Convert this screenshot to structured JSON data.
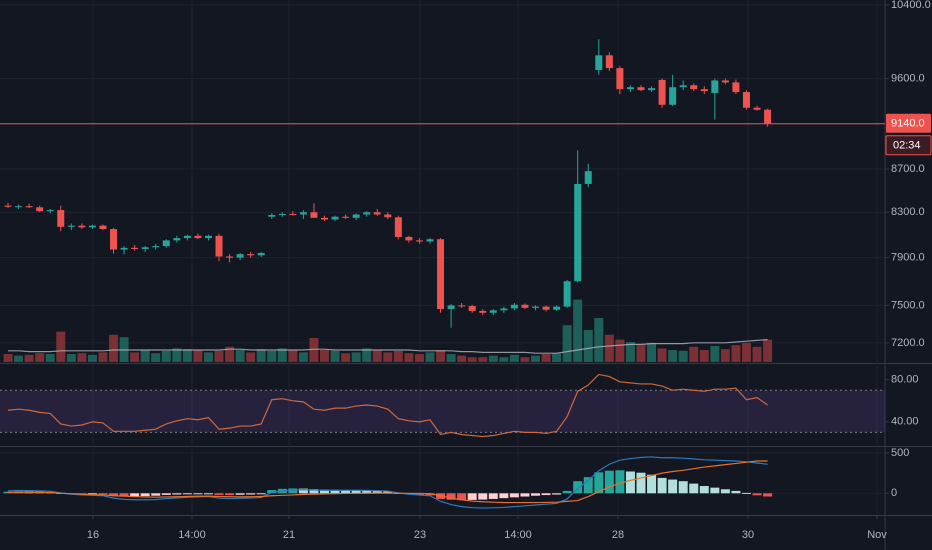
{
  "chart_data": [
    {
      "type": "candlestick",
      "open": [
        8360,
        8350,
        8355,
        8345,
        8310,
        8320,
        8170,
        8180,
        8165,
        8180,
        8150,
        7970,
        7985,
        7975,
        7990,
        8000,
        8050,
        8070,
        8090,
        8070,
        8090,
        7910,
        7900,
        7930,
        7920,
        8260,
        8275,
        8285,
        8280,
        8300,
        8250,
        8235,
        8260,
        8250,
        8280,
        8300,
        8280,
        8255,
        8080,
        8050,
        8040,
        8060,
        7470,
        7500,
        7495,
        7455,
        7440,
        7460,
        7475,
        7505,
        7480,
        7490,
        7465,
        7490,
        7700,
        8560,
        9690,
        9846,
        9710,
        9490,
        9510,
        9480,
        9586,
        9330,
        9510,
        9530,
        9490,
        9450,
        9580,
        9560,
        9460,
        9300,
        9280
      ],
      "high": [
        8385,
        8370,
        8380,
        8360,
        8330,
        8360,
        8200,
        8200,
        8190,
        8190,
        8160,
        8000,
        8010,
        8000,
        8020,
        8060,
        8090,
        8100,
        8110,
        8100,
        8110,
        7930,
        7940,
        7950,
        7950,
        8290,
        8300,
        8310,
        8320,
        8380,
        8270,
        8270,
        8280,
        8290,
        8310,
        8330,
        8300,
        8270,
        8090,
        8070,
        8070,
        8070,
        7510,
        7520,
        7505,
        7470,
        7470,
        7490,
        7520,
        7515,
        7500,
        7500,
        7500,
        7710,
        8880,
        8750,
        10020,
        9880,
        9730,
        9530,
        9530,
        9520,
        9600,
        9640,
        9580,
        9550,
        9520,
        9600,
        9600,
        9590,
        9480,
        9320,
        9290
      ],
      "low": [
        8340,
        8330,
        8340,
        8300,
        8290,
        8130,
        8140,
        8150,
        8150,
        8140,
        7935,
        7930,
        7960,
        7950,
        7970,
        7985,
        8030,
        8050,
        8060,
        8050,
        7870,
        7860,
        7880,
        7900,
        7905,
        8240,
        8260,
        8270,
        8240,
        8260,
        8220,
        8220,
        8240,
        8230,
        8260,
        8270,
        8240,
        8060,
        8030,
        8020,
        8020,
        7440,
        7320,
        7480,
        7440,
        7420,
        7420,
        7440,
        7460,
        7470,
        7460,
        7450,
        7455,
        7480,
        7690,
        8530,
        9640,
        9680,
        9440,
        9460,
        9470,
        9460,
        9300,
        9320,
        9480,
        9470,
        9440,
        9180,
        9540,
        9440,
        9280,
        9270,
        9110
      ],
      "close": [
        8350,
        8355,
        8345,
        8310,
        8320,
        8170,
        8180,
        8165,
        8180,
        8150,
        7970,
        7985,
        7975,
        7990,
        8000,
        8050,
        8070,
        8090,
        8070,
        8090,
        7910,
        7900,
        7930,
        7920,
        7940,
        8275,
        8285,
        8280,
        8300,
        8250,
        8235,
        8260,
        8250,
        8280,
        8300,
        8280,
        8255,
        8080,
        8050,
        8040,
        8060,
        7470,
        7500,
        7495,
        7455,
        7440,
        7460,
        7475,
        7505,
        7480,
        7490,
        7465,
        7490,
        7700,
        8560,
        8680,
        9846,
        9710,
        9490,
        9510,
        9480,
        9500,
        9330,
        9510,
        9530,
        9490,
        9470,
        9580,
        9560,
        9460,
        9300,
        9280,
        9140
      ],
      "up_color": "#26a69a",
      "down_color": "#ef5350",
      "ylim": [
        7052,
        10457
      ],
      "log_scale": true,
      "yticks": [
        {
          "value": 10400,
          "label": "10400.0"
        },
        {
          "value": 9600,
          "label": "9600.0"
        },
        {
          "value": 8700,
          "label": "8700.0"
        },
        {
          "value": 8300,
          "label": "8300.0"
        },
        {
          "value": 7900,
          "label": "7900.0"
        },
        {
          "value": 7500,
          "label": "7500.0"
        },
        {
          "value": 7200,
          "label": "7200.0"
        }
      ],
      "volume": [
        10,
        8,
        9,
        11,
        10,
        38,
        10,
        11,
        9,
        12,
        34,
        31,
        12,
        15,
        11,
        14,
        17,
        16,
        15,
        12,
        14,
        19,
        15,
        12,
        16,
        14,
        17,
        15,
        12,
        30,
        15,
        14,
        11,
        12,
        17,
        15,
        12,
        14,
        11,
        10,
        12,
        15,
        10,
        8,
        6,
        6,
        8,
        6,
        9,
        6,
        8,
        10,
        11,
        46,
        78,
        40,
        55,
        34,
        28,
        25,
        22,
        24,
        17,
        15,
        14,
        19,
        15,
        20,
        16,
        21,
        24,
        19,
        28
      ],
      "volume_ma": [
        14,
        14,
        13,
        13,
        13,
        14,
        14,
        14,
        14,
        14,
        15,
        15,
        15,
        15,
        15,
        15,
        15,
        15,
        15,
        15,
        15,
        16,
        16,
        15,
        15,
        15,
        15,
        15,
        15,
        16,
        16,
        15,
        15,
        15,
        15,
        15,
        15,
        15,
        15,
        14,
        14,
        14,
        14,
        13,
        13,
        12,
        12,
        12,
        12,
        12,
        11,
        11,
        11,
        13,
        15,
        17,
        19,
        20,
        21,
        22,
        22,
        23,
        23,
        23,
        23,
        24,
        24,
        24,
        24,
        25,
        26,
        27,
        28
      ],
      "volume_color_up": "#1f5f5a",
      "volume_color_down": "#7a3034",
      "volume_ma_color": "#b2b5be",
      "vlim": [
        0,
        100
      ],
      "xlim": [
        -0.76,
        83.13
      ],
      "xticks": [
        {
          "value": 8.06,
          "label": "16"
        },
        {
          "value": 17.44,
          "label": "14:00"
        },
        {
          "value": 26.64,
          "label": "21"
        },
        {
          "value": 39.05,
          "label": "23"
        },
        {
          "value": 48.34,
          "label": "14:00"
        },
        {
          "value": 57.82,
          "label": "28"
        },
        {
          "value": 70.14,
          "label": "30"
        },
        {
          "value": 82.37,
          "label": "Nov"
        }
      ],
      "last_price": {
        "value": 9140,
        "label": "9140.0"
      },
      "countdown": "02:34",
      "grid": true
    },
    {
      "type": "line",
      "values": [
        51,
        52,
        51,
        49,
        48,
        38,
        36,
        37,
        40,
        39,
        31,
        31,
        31,
        32,
        33,
        38,
        41,
        43,
        42,
        44,
        33,
        34,
        36,
        36,
        38,
        61,
        62,
        60,
        59,
        52,
        51,
        53,
        53,
        55,
        56,
        55,
        52,
        43,
        41,
        40,
        42,
        28,
        30,
        28,
        27,
        26,
        27,
        29,
        31,
        30,
        30,
        29,
        31,
        45,
        69,
        75,
        85,
        83,
        78,
        77,
        76,
        76,
        74,
        70,
        71,
        70,
        69,
        71,
        71,
        72,
        61,
        63,
        56
      ],
      "color": "#d0683a",
      "ylim": [
        18,
        94
      ],
      "yticks": [
        {
          "value": 80,
          "label": "80.00"
        },
        {
          "value": 40,
          "label": "40.00"
        }
      ],
      "band": [
        30,
        70
      ],
      "band_color": "#7e57c2"
    },
    {
      "type": "macd",
      "macd": [
        30,
        35,
        33,
        30,
        25,
        5,
        -10,
        -20,
        -25,
        -30,
        -60,
        -75,
        -80,
        -80,
        -78,
        -65,
        -58,
        -50,
        -45,
        -40,
        -60,
        -65,
        -62,
        -58,
        -52,
        10,
        30,
        40,
        45,
        40,
        38,
        38,
        38,
        38,
        36,
        32,
        28,
        5,
        -10,
        -22,
        -30,
        -100,
        -140,
        -165,
        -178,
        -183,
        -180,
        -175,
        -165,
        -155,
        -145,
        -135,
        -125,
        -70,
        60,
        160,
        280,
        360,
        410,
        430,
        445,
        450,
        440,
        440,
        435,
        425,
        415,
        410,
        405,
        400,
        390,
        375,
        360
      ],
      "signal": [
        10,
        10,
        11,
        10,
        10,
        0,
        -5,
        -10,
        -17,
        -18,
        -30,
        -35,
        -42,
        -45,
        -48,
        -45,
        -43,
        -40,
        -37,
        -35,
        -40,
        -43,
        -44,
        -43,
        -40,
        -30,
        -25,
        -20,
        -13,
        -10,
        -7,
        -4,
        -2,
        0,
        1,
        2,
        3,
        0,
        0,
        -2,
        -5,
        -30,
        -60,
        -80,
        -96,
        -105,
        -110,
        -115,
        -115,
        -115,
        -115,
        -113,
        -110,
        -100,
        -90,
        -40,
        20,
        80,
        125,
        160,
        190,
        220,
        250,
        270,
        285,
        305,
        325,
        340,
        355,
        370,
        385,
        400,
        400
      ],
      "histogram": [
        20,
        25,
        22,
        20,
        15,
        5,
        -5,
        -10,
        -8,
        -12,
        -30,
        -40,
        -38,
        -35,
        -30,
        -20,
        -15,
        -10,
        -8,
        -5,
        -20,
        -22,
        -18,
        -15,
        -12,
        40,
        55,
        60,
        58,
        50,
        45,
        42,
        40,
        38,
        35,
        30,
        25,
        5,
        -10,
        -20,
        -25,
        -70,
        -80,
        -85,
        -82,
        -78,
        -70,
        -60,
        -50,
        -40,
        -30,
        -22,
        -15,
        30,
        150,
        200,
        260,
        280,
        285,
        270,
        255,
        230,
        190,
        170,
        150,
        120,
        90,
        70,
        50,
        30,
        5,
        -25,
        -40
      ],
      "macd_color": "#2a7bbf",
      "signal_color": "#e8702a",
      "hist_colors": [
        "#26a69a",
        "#b2dfdb",
        "#ef5350",
        "#ffcdd2"
      ],
      "ylim": [
        -244,
        561
      ],
      "yticks": [
        500,
        0
      ]
    }
  ]
}
